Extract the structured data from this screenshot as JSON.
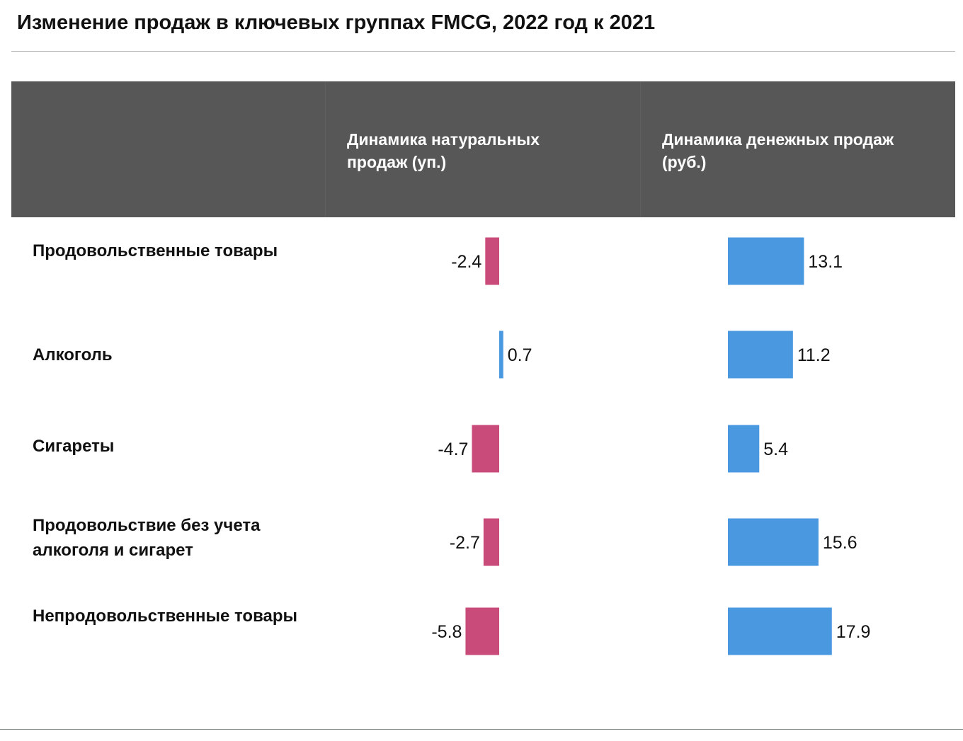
{
  "title": "Изменение продаж в ключевых группах FMCG, 2022 год к 2021",
  "columns": {
    "natural": "Динамика натуральных продаж (уп.)",
    "monetary": "Динамика денежных продаж (руб.)"
  },
  "colors": {
    "negative": "#c94b79",
    "positive": "#4a98e0",
    "header_bg": "#575757"
  },
  "chart_data": {
    "type": "bar",
    "orientation": "horizontal",
    "title": "Изменение продаж в ключевых группах FMCG, 2022 год к 2021",
    "categories": [
      "Продовольственные товары",
      "Алкоголь",
      "Сигареты",
      "Продовольствие без учета алкоголя и сигарет",
      "Непродовольственные товары"
    ],
    "series": [
      {
        "name": "Динамика натуральных продаж (уп.)",
        "values": [
          -2.4,
          0.7,
          -4.7,
          -2.7,
          -5.8
        ]
      },
      {
        "name": "Динамика денежных продаж (руб.)",
        "values": [
          13.1,
          11.2,
          5.4,
          15.6,
          17.9
        ]
      }
    ]
  }
}
